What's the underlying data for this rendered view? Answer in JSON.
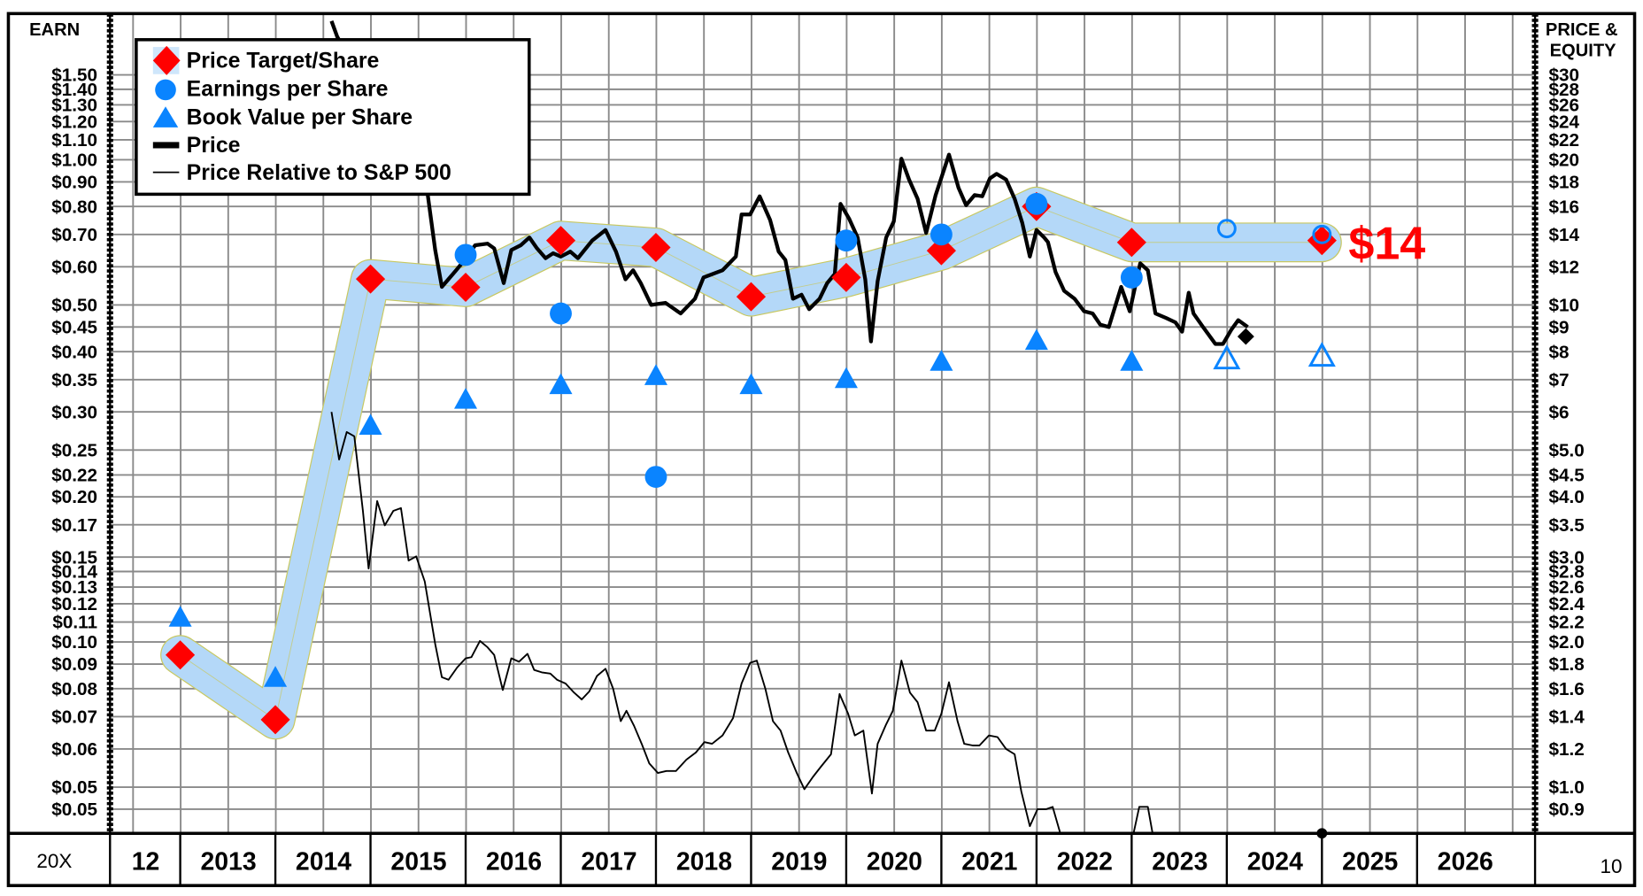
{
  "chart_data": {
    "type": "line",
    "left_axis": {
      "label": "EARN",
      "scale": "log",
      "ticks": [
        {
          "value": 1.5,
          "label": "$1.50"
        },
        {
          "value": 1.4,
          "label": "$1.40"
        },
        {
          "value": 1.3,
          "label": "$1.30"
        },
        {
          "value": 1.2,
          "label": "$1.20"
        },
        {
          "value": 1.1,
          "label": "$1.10"
        },
        {
          "value": 1.0,
          "label": "$1.00"
        },
        {
          "value": 0.9,
          "label": "$0.90"
        },
        {
          "value": 0.8,
          "label": "$0.80"
        },
        {
          "value": 0.7,
          "label": "$0.70"
        },
        {
          "value": 0.6,
          "label": "$0.60"
        },
        {
          "value": 0.5,
          "label": "$0.50"
        },
        {
          "value": 0.45,
          "label": "$0.45"
        },
        {
          "value": 0.4,
          "label": "$0.40"
        },
        {
          "value": 0.35,
          "label": "$0.35"
        },
        {
          "value": 0.3,
          "label": "$0.30"
        },
        {
          "value": 0.25,
          "label": "$0.25"
        },
        {
          "value": 0.222,
          "label": "$0.22"
        },
        {
          "value": 0.2,
          "label": "$0.20"
        },
        {
          "value": 0.175,
          "label": "$0.17"
        },
        {
          "value": 0.15,
          "label": "$0.15"
        },
        {
          "value": 0.14,
          "label": "$0.14"
        },
        {
          "value": 0.13,
          "label": "$0.13"
        },
        {
          "value": 0.12,
          "label": "$0.12"
        },
        {
          "value": 0.11,
          "label": "$0.11"
        },
        {
          "value": 0.1,
          "label": "$0.10"
        },
        {
          "value": 0.09,
          "label": "$0.09"
        },
        {
          "value": 0.08,
          "label": "$0.08"
        },
        {
          "value": 0.07,
          "label": "$0.07"
        },
        {
          "value": 0.06,
          "label": "$0.06"
        },
        {
          "value": 0.05,
          "label": "$0.05"
        },
        {
          "value": 0.045,
          "label": "$0.05"
        }
      ]
    },
    "right_axis": {
      "label_lines": [
        "PRICE &",
        "EQUITY"
      ],
      "scale": "log",
      "ticks": [
        {
          "value": 30,
          "label": "$30"
        },
        {
          "value": 28,
          "label": "$28"
        },
        {
          "value": 26,
          "label": "$26"
        },
        {
          "value": 24,
          "label": "$24"
        },
        {
          "value": 22,
          "label": "$22"
        },
        {
          "value": 20,
          "label": "$20"
        },
        {
          "value": 18,
          "label": "$18"
        },
        {
          "value": 16,
          "label": "$16"
        },
        {
          "value": 14,
          "label": "$14"
        },
        {
          "value": 12,
          "label": "$12"
        },
        {
          "value": 10,
          "label": "$10"
        },
        {
          "value": 9,
          "label": "$9"
        },
        {
          "value": 8,
          "label": "$8"
        },
        {
          "value": 7,
          "label": "$7"
        },
        {
          "value": 6,
          "label": "$6"
        },
        {
          "value": 5,
          "label": "$5.0"
        },
        {
          "value": 4.44,
          "label": "$4.5"
        },
        {
          "value": 4,
          "label": "$4.0"
        },
        {
          "value": 3.5,
          "label": "$3.5"
        },
        {
          "value": 3,
          "label": "$3.0"
        },
        {
          "value": 2.8,
          "label": "$2.8"
        },
        {
          "value": 2.6,
          "label": "$2.6"
        },
        {
          "value": 2.4,
          "label": "$2.4"
        },
        {
          "value": 2.2,
          "label": "$2.2"
        },
        {
          "value": 2.0,
          "label": "$2.0"
        },
        {
          "value": 1.8,
          "label": "$1.8"
        },
        {
          "value": 1.6,
          "label": "$1.6"
        },
        {
          "value": 1.4,
          "label": "$1.4"
        },
        {
          "value": 1.2,
          "label": "$1.2"
        },
        {
          "value": 1.0,
          "label": "$1.0"
        },
        {
          "value": 0.9,
          "label": "$0.9"
        }
      ]
    },
    "x_axis": {
      "prefix": "20X",
      "labels": [
        "12",
        "2013",
        "2014",
        "2015",
        "2016",
        "2017",
        "2018",
        "2019",
        "2020",
        "2021",
        "2022",
        "2023",
        "2024",
        "2025",
        "2026"
      ]
    },
    "corner_label": "10",
    "legend": {
      "placement": "top-left",
      "entries": [
        {
          "label": "Price Target/Share",
          "marker": "diamond",
          "color": "#ff0000"
        },
        {
          "label": "Earnings per Share",
          "marker": "circle",
          "color": "#0a84ff"
        },
        {
          "label": "Book Value per Share",
          "marker": "triangle",
          "color": "#0a84ff"
        },
        {
          "label": "Price",
          "marker": "thick-line",
          "color": "#000000"
        },
        {
          "label": "Price Relative to S&P 500",
          "marker": "thin-line",
          "color": "#000000"
        }
      ]
    },
    "colors": {
      "target": "#ff0000",
      "fundamentals": "#0a84ff",
      "band": "#b4d8f8",
      "band_edge": "#c8c860",
      "grid": "#8a8a8a"
    },
    "price_target_per_share": [
      {
        "year": 2012,
        "value": 0.094
      },
      {
        "year": 2013,
        "value": 0.069
      },
      {
        "year": 2014,
        "value": 0.566
      },
      {
        "year": 2015,
        "value": 0.544
      },
      {
        "year": 2016,
        "value": 0.68
      },
      {
        "year": 2017,
        "value": 0.658
      },
      {
        "year": 2018,
        "value": 0.52
      },
      {
        "year": 2019,
        "value": 0.57
      },
      {
        "year": 2020,
        "value": 0.648
      },
      {
        "year": 2021,
        "value": 0.8
      },
      {
        "year": 2022,
        "value": 0.674
      },
      {
        "year": 2024,
        "value": 0.68
      }
    ],
    "target_band": [
      {
        "year": 2012,
        "value": 0.094
      },
      {
        "year": 2013,
        "value": 0.069
      },
      {
        "year": 2014,
        "value": 0.566
      },
      {
        "year": 2015,
        "value": 0.544
      },
      {
        "year": 2016,
        "value": 0.68
      },
      {
        "year": 2017,
        "value": 0.658
      },
      {
        "year": 2018,
        "value": 0.52
      },
      {
        "year": 2019,
        "value": 0.57
      },
      {
        "year": 2020,
        "value": 0.648
      },
      {
        "year": 2021,
        "value": 0.8
      },
      {
        "year": 2022,
        "value": 0.674
      },
      {
        "year": 2023,
        "value": 0.674
      },
      {
        "year": 2024,
        "value": 0.674
      }
    ],
    "earnings_per_share": [
      {
        "year": 2015,
        "value": 0.635,
        "estimate": false
      },
      {
        "year": 2016,
        "value": 0.48,
        "estimate": false
      },
      {
        "year": 2017,
        "value": 0.22,
        "estimate": false
      },
      {
        "year": 2019,
        "value": 0.68,
        "estimate": false
      },
      {
        "year": 2020,
        "value": 0.7,
        "estimate": false
      },
      {
        "year": 2021,
        "value": 0.81,
        "estimate": false
      },
      {
        "year": 2022,
        "value": 0.57,
        "estimate": false
      },
      {
        "year": 2023,
        "value": 0.72,
        "estimate": true
      },
      {
        "year": 2024,
        "value": 0.7,
        "estimate": true
      }
    ],
    "book_value_per_share": [
      {
        "year": 2012,
        "value": 0.112,
        "estimate": false
      },
      {
        "year": 2013,
        "value": 0.084,
        "estimate": false
      },
      {
        "year": 2014,
        "value": 0.28,
        "estimate": false
      },
      {
        "year": 2015,
        "value": 0.317,
        "estimate": false
      },
      {
        "year": 2016,
        "value": 0.34,
        "estimate": false
      },
      {
        "year": 2017,
        "value": 0.355,
        "estimate": false
      },
      {
        "year": 2018,
        "value": 0.34,
        "estimate": false
      },
      {
        "year": 2019,
        "value": 0.35,
        "estimate": false
      },
      {
        "year": 2020,
        "value": 0.38,
        "estimate": false
      },
      {
        "year": 2021,
        "value": 0.42,
        "estimate": false
      },
      {
        "year": 2022,
        "value": 0.38,
        "estimate": false
      },
      {
        "year": 2023,
        "value": 0.385,
        "estimate": true
      },
      {
        "year": 2024,
        "value": 0.39,
        "estimate": true
      }
    ],
    "price": [
      [
        2014.59,
        38.8
      ],
      [
        2014.65,
        36.0
      ],
      [
        2015.6,
        17.0
      ],
      [
        2015.68,
        13.0
      ],
      [
        2015.75,
        10.9
      ],
      [
        2015.9,
        11.8
      ],
      [
        2015.99,
        12.4
      ],
      [
        2016.1,
        13.3
      ],
      [
        2016.23,
        13.4
      ],
      [
        2016.3,
        13.1
      ],
      [
        2016.4,
        11.1
      ],
      [
        2016.48,
        13.0
      ],
      [
        2016.58,
        13.3
      ],
      [
        2016.67,
        13.8
      ],
      [
        2016.75,
        13.1
      ],
      [
        2016.84,
        12.5
      ],
      [
        2016.92,
        12.8
      ],
      [
        2017.0,
        12.6
      ],
      [
        2017.1,
        12.9
      ],
      [
        2017.18,
        12.5
      ],
      [
        2017.33,
        13.6
      ],
      [
        2017.47,
        14.3
      ],
      [
        2017.58,
        12.9
      ],
      [
        2017.68,
        11.3
      ],
      [
        2017.76,
        11.8
      ],
      [
        2017.84,
        11.1
      ],
      [
        2017.95,
        10.0
      ],
      [
        2018.1,
        10.1
      ],
      [
        2018.26,
        9.6
      ],
      [
        2018.41,
        10.3
      ],
      [
        2018.5,
        11.4
      ],
      [
        2018.7,
        11.8
      ],
      [
        2018.84,
        12.6
      ],
      [
        2018.9,
        15.4
      ],
      [
        2018.99,
        15.4
      ],
      [
        2019.09,
        16.8
      ],
      [
        2019.2,
        15.0
      ],
      [
        2019.29,
        12.9
      ],
      [
        2019.36,
        12.4
      ],
      [
        2019.44,
        10.3
      ],
      [
        2019.53,
        10.5
      ],
      [
        2019.61,
        9.8
      ],
      [
        2019.72,
        10.3
      ],
      [
        2019.8,
        11.1
      ],
      [
        2019.88,
        11.6
      ],
      [
        2019.94,
        16.2
      ],
      [
        2020.03,
        15.1
      ],
      [
        2020.12,
        13.8
      ],
      [
        2020.2,
        11.3
      ],
      [
        2020.26,
        8.4
      ],
      [
        2020.33,
        11.2
      ],
      [
        2020.42,
        13.8
      ],
      [
        2020.5,
        14.9
      ],
      [
        2020.58,
        20.1
      ],
      [
        2020.66,
        18.2
      ],
      [
        2020.75,
        16.6
      ],
      [
        2020.84,
        14.1
      ],
      [
        2020.94,
        16.9
      ],
      [
        2021.08,
        20.5
      ],
      [
        2021.18,
        17.5
      ],
      [
        2021.26,
        16.1
      ],
      [
        2021.35,
        16.9
      ],
      [
        2021.43,
        16.8
      ],
      [
        2021.51,
        18.3
      ],
      [
        2021.58,
        18.7
      ],
      [
        2021.68,
        18.2
      ],
      [
        2021.77,
        16.6
      ],
      [
        2021.85,
        14.8
      ],
      [
        2021.93,
        12.6
      ],
      [
        2022.0,
        14.3
      ],
      [
        2022.08,
        13.8
      ],
      [
        2022.12,
        13.5
      ],
      [
        2022.2,
        11.7
      ],
      [
        2022.29,
        10.7
      ],
      [
        2022.4,
        10.3
      ],
      [
        2022.5,
        9.7
      ],
      [
        2022.59,
        9.6
      ],
      [
        2022.67,
        9.1
      ],
      [
        2022.76,
        9.0
      ],
      [
        2022.89,
        10.9
      ],
      [
        2022.98,
        9.7
      ],
      [
        2023.09,
        12.2
      ],
      [
        2023.17,
        11.8
      ],
      [
        2023.25,
        9.6
      ],
      [
        2023.36,
        9.4
      ],
      [
        2023.46,
        9.2
      ],
      [
        2023.53,
        8.8
      ],
      [
        2023.6,
        10.6
      ],
      [
        2023.65,
        9.6
      ],
      [
        2023.75,
        9.0
      ],
      [
        2023.88,
        8.3
      ],
      [
        2023.96,
        8.3
      ],
      [
        2024.05,
        8.9
      ],
      [
        2024.12,
        9.3
      ],
      [
        2024.22,
        9.0
      ]
    ],
    "current_price": {
      "t": 2024.2,
      "value": 8.6
    },
    "price_relative_to_sp500": [
      [
        [
          2014.59,
          6.0
        ],
        [
          2014.67,
          4.78
        ],
        [
          2014.75,
          5.45
        ],
        [
          2014.83,
          5.34
        ],
        [
          2014.92,
          3.74
        ],
        [
          2014.98,
          2.84
        ],
        [
          2015.07,
          3.92
        ],
        [
          2015.15,
          3.49
        ],
        [
          2015.24,
          3.74
        ],
        [
          2015.32,
          3.79
        ],
        [
          2015.4,
          2.95
        ],
        [
          2015.48,
          3.01
        ],
        [
          2015.57,
          2.67
        ],
        [
          2015.68,
          1.98
        ],
        [
          2015.75,
          1.69
        ],
        [
          2015.82,
          1.67
        ],
        [
          2015.91,
          1.77
        ],
        [
          2016.0,
          1.85
        ],
        [
          2016.06,
          1.86
        ],
        [
          2016.15,
          2.01
        ],
        [
          2016.23,
          1.95
        ],
        [
          2016.3,
          1.88
        ],
        [
          2016.39,
          1.59
        ],
        [
          2016.48,
          1.85
        ],
        [
          2016.56,
          1.82
        ],
        [
          2016.65,
          1.89
        ],
        [
          2016.72,
          1.75
        ],
        [
          2016.8,
          1.73
        ],
        [
          2016.89,
          1.72
        ],
        [
          2016.96,
          1.67
        ],
        [
          2017.05,
          1.64
        ],
        [
          2017.14,
          1.57
        ],
        [
          2017.22,
          1.52
        ],
        [
          2017.3,
          1.58
        ],
        [
          2017.38,
          1.7
        ],
        [
          2017.47,
          1.76
        ],
        [
          2017.55,
          1.6
        ],
        [
          2017.63,
          1.37
        ],
        [
          2017.69,
          1.44
        ],
        [
          2017.77,
          1.34
        ],
        [
          2017.85,
          1.23
        ],
        [
          2017.93,
          1.12
        ],
        [
          2018.02,
          1.07
        ],
        [
          2018.11,
          1.08
        ],
        [
          2018.21,
          1.08
        ],
        [
          2018.32,
          1.14
        ],
        [
          2018.42,
          1.18
        ],
        [
          2018.51,
          1.24
        ],
        [
          2018.59,
          1.23
        ],
        [
          2018.7,
          1.28
        ],
        [
          2018.81,
          1.39
        ],
        [
          2018.9,
          1.64
        ],
        [
          2018.99,
          1.81
        ],
        [
          2019.06,
          1.83
        ],
        [
          2019.15,
          1.6
        ],
        [
          2019.23,
          1.37
        ],
        [
          2019.31,
          1.31
        ],
        [
          2019.39,
          1.18
        ],
        [
          2019.48,
          1.07
        ],
        [
          2019.56,
          0.99
        ],
        [
          2019.65,
          1.05
        ],
        [
          2019.73,
          1.1
        ],
        [
          2019.84,
          1.17
        ],
        [
          2019.93,
          1.56
        ],
        [
          2020.02,
          1.42
        ],
        [
          2020.09,
          1.28
        ],
        [
          2020.18,
          1.31
        ],
        [
          2020.27,
          0.97
        ],
        [
          2020.33,
          1.23
        ],
        [
          2020.42,
          1.35
        ],
        [
          2020.49,
          1.44
        ],
        [
          2020.58,
          1.83
        ],
        [
          2020.67,
          1.57
        ],
        [
          2020.75,
          1.5
        ],
        [
          2020.84,
          1.31
        ],
        [
          2020.93,
          1.31
        ],
        [
          2021.0,
          1.42
        ],
        [
          2021.08,
          1.65
        ],
        [
          2021.17,
          1.37
        ],
        [
          2021.24,
          1.23
        ],
        [
          2021.33,
          1.22
        ],
        [
          2021.4,
          1.22
        ],
        [
          2021.5,
          1.28
        ],
        [
          2021.59,
          1.27
        ],
        [
          2021.68,
          1.2
        ],
        [
          2021.77,
          1.17
        ],
        [
          2021.84,
          0.98
        ],
        [
          2021.93,
          0.83
        ],
        [
          2022.01,
          0.9
        ],
        [
          2022.1,
          0.9
        ],
        [
          2022.17,
          0.91
        ],
        [
          2022.25,
          0.8
        ]
      ],
      [
        [
          2023.02,
          0.8
        ],
        [
          2023.08,
          0.91
        ],
        [
          2023.17,
          0.91
        ],
        [
          2023.22,
          0.8
        ]
      ]
    ],
    "marker_below_axis": {
      "year": 2024
    },
    "target_annotation": "$14"
  }
}
